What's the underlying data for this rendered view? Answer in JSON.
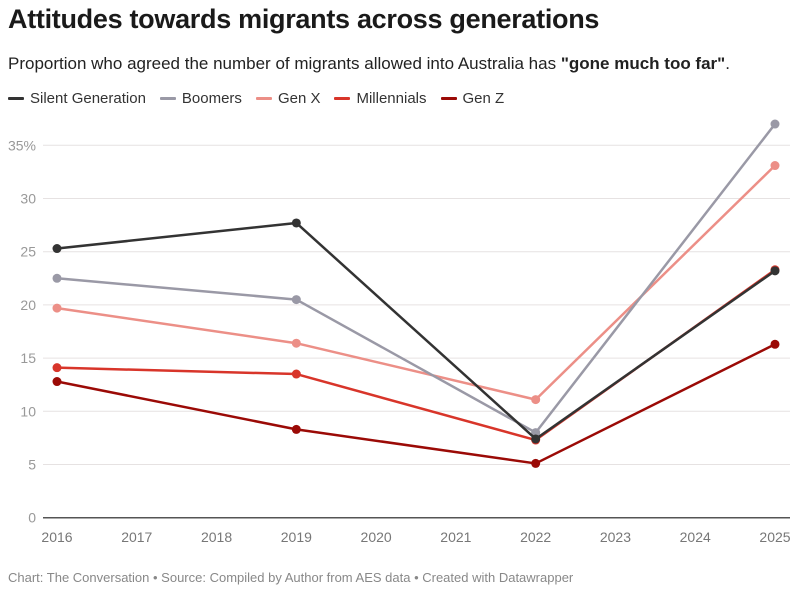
{
  "title": "Attitudes towards migrants across generations",
  "subtitle_prefix": "Proportion who agreed the number of migrants allowed into Australia has ",
  "subtitle_bold": "\"gone much too far\"",
  "subtitle_suffix": ".",
  "footer": "Chart: The Conversation • Source: Compiled by Author from AES data • Created with Datawrapper",
  "chart_data": {
    "type": "line",
    "x": [
      2016,
      2019,
      2022,
      2025
    ],
    "xticks": [
      "2016",
      "2017",
      "2018",
      "2019",
      "2020",
      "2021",
      "2022",
      "2023",
      "2024",
      "2025"
    ],
    "yticks": [
      "0",
      "5",
      "10",
      "15",
      "20",
      "25",
      "30",
      "35%"
    ],
    "ylim": [
      0,
      35
    ],
    "xlim": [
      2016,
      2025
    ],
    "grid": true,
    "legend": "top-left",
    "series": [
      {
        "name": "Silent Generation",
        "color": "#333333",
        "values": [
          25.3,
          27.7,
          7.4,
          23.2
        ]
      },
      {
        "name": "Boomers",
        "color": "#9a99a6",
        "values": [
          22.5,
          20.5,
          8.0,
          37.0
        ]
      },
      {
        "name": "Gen X",
        "color": "#ec8f87",
        "values": [
          19.7,
          16.4,
          11.1,
          33.1
        ]
      },
      {
        "name": "Millennials",
        "color": "#d8352a",
        "values": [
          14.1,
          13.5,
          7.3,
          23.3
        ]
      },
      {
        "name": "Gen Z",
        "color": "#9b0a06",
        "values": [
          12.8,
          8.3,
          5.1,
          16.3
        ]
      }
    ]
  }
}
